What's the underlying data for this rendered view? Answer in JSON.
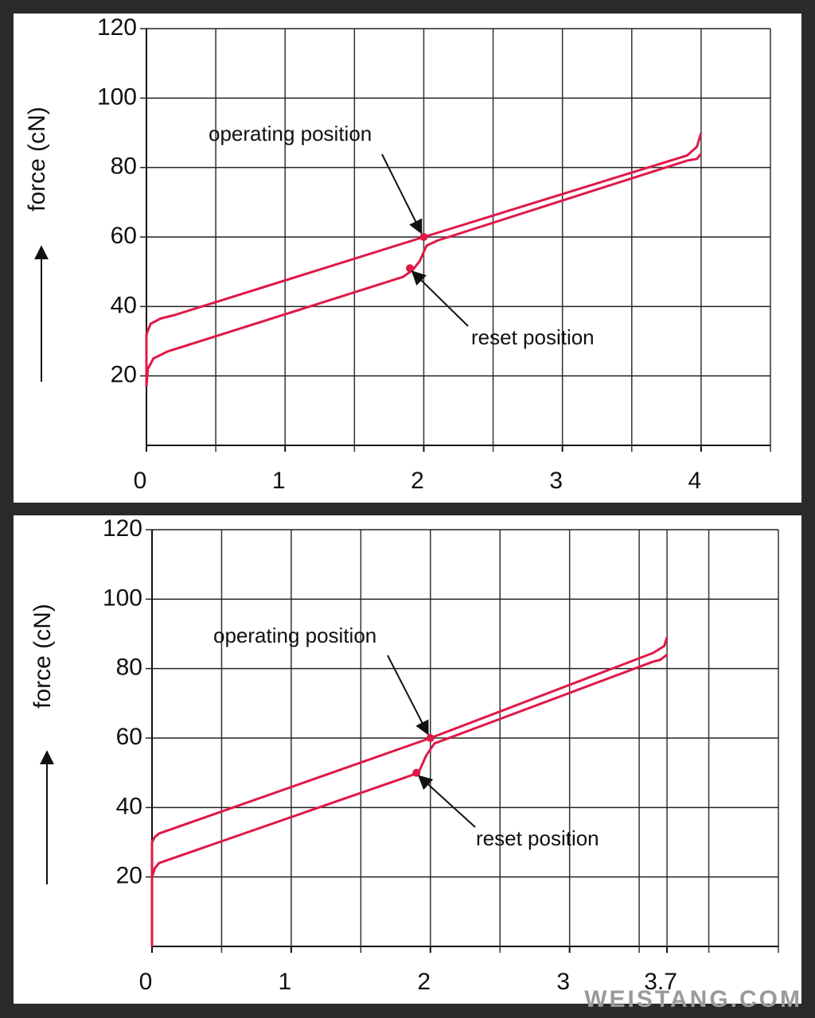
{
  "chart_data": [
    {
      "type": "line",
      "ylabel": "force (cN)",
      "xlim": [
        0,
        4.5
      ],
      "ylim": [
        0,
        120
      ],
      "xticks": [
        0,
        1,
        2,
        3,
        4
      ],
      "yticks": [
        20,
        40,
        60,
        80,
        100,
        120
      ],
      "xgrid": [
        0.5,
        1,
        1.5,
        2,
        2.5,
        3,
        3.5,
        4,
        4.5
      ],
      "grid": true,
      "series": [
        {
          "color": "#e01848",
          "x": [
            0,
            0,
            0.03,
            0.1,
            0.2,
            2,
            3.9,
            3.97,
            4
          ],
          "values": [
            17,
            32,
            35,
            36.5,
            37.5,
            60,
            83.5,
            86,
            90
          ]
        },
        {
          "color": "#e01848",
          "x": [
            4,
            3.97,
            3.9,
            2.1,
            2.02,
            1.97,
            1.92,
            1.85,
            0.15,
            0.05,
            0.01,
            0
          ],
          "values": [
            84,
            82.5,
            82,
            59,
            57.5,
            53,
            50.5,
            48.5,
            27,
            25,
            22,
            17
          ]
        }
      ],
      "annotations": [
        {
          "text": "operating position",
          "x": 2,
          "y": 60
        },
        {
          "text": "reset position",
          "x": 1.9,
          "y": 51
        }
      ]
    },
    {
      "type": "line",
      "ylabel": "force (cN)",
      "xlim": [
        0,
        4.5
      ],
      "ylim": [
        0,
        120
      ],
      "xticks": [
        0,
        1,
        2,
        3,
        3.7
      ],
      "yticks": [
        20,
        40,
        60,
        80,
        100,
        120
      ],
      "xgrid": [
        0.5,
        1,
        1.5,
        2,
        2.5,
        3,
        3.5,
        3.7,
        4,
        4.5
      ],
      "grid": true,
      "series": [
        {
          "color": "#e01848",
          "x": [
            0,
            0,
            0.02,
            0.05,
            2,
            3.6,
            3.68,
            3.7
          ],
          "values": [
            0,
            30,
            31.5,
            32.5,
            60,
            84.5,
            86.5,
            89
          ]
        },
        {
          "color": "#e01848",
          "x": [
            3.7,
            3.65,
            3.6,
            2.1,
            2.03,
            1.97,
            1.92,
            1.88,
            0.05,
            0.02,
            0,
            0
          ],
          "values": [
            84,
            82.5,
            82,
            59.5,
            58.5,
            55,
            50.5,
            49.5,
            24,
            22.5,
            20,
            0
          ]
        }
      ],
      "annotations": [
        {
          "text": "operating position",
          "x": 2,
          "y": 60
        },
        {
          "text": "reset position",
          "x": 1.9,
          "y": 50
        }
      ]
    }
  ],
  "watermark": "WEISTANG.COM"
}
